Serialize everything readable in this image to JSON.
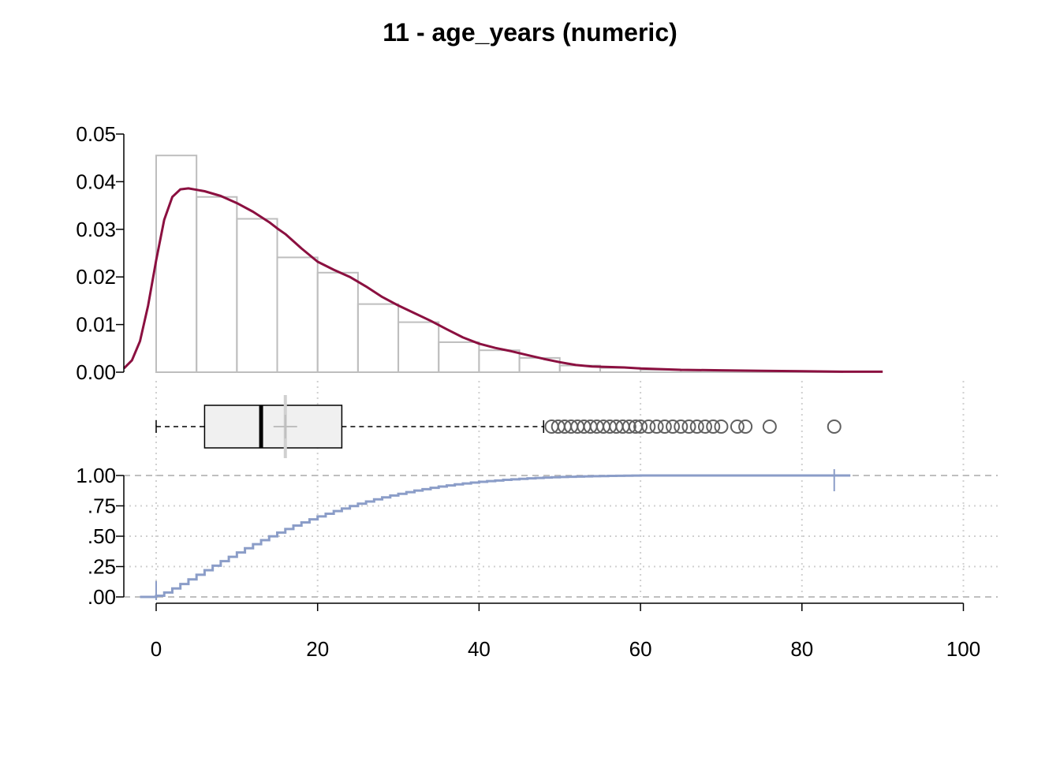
{
  "chart_data": {
    "type": "histogram-boxplot-ecdf",
    "title": "11 - age_years (numeric)",
    "xlabel": "",
    "xlim": [
      -5,
      105
    ],
    "x_ticks": [
      0,
      20,
      40,
      60,
      80,
      100
    ],
    "x_tick_labels": [
      "0",
      "20",
      "40",
      "60",
      "80",
      "100"
    ],
    "grid": true,
    "colors": {
      "histogram_border": "#BEBEBE",
      "density": "#8B1040",
      "box_fill": "#F0F0F0",
      "ecdf": "#8B9DC8",
      "mean_marker": "#BEBEBE",
      "grid": "#D0D0D0",
      "outlier": "#606060"
    },
    "histogram": {
      "ylim": [
        0,
        0.05
      ],
      "y_ticks": [
        0,
        0.01,
        0.02,
        0.03,
        0.04,
        0.05
      ],
      "y_tick_labels": [
        "0.00",
        "0.01",
        "0.02",
        "0.03",
        "0.04",
        "0.05"
      ],
      "bin_width": 5,
      "bins": [
        {
          "x0": 0,
          "x1": 5,
          "density": 0.0455
        },
        {
          "x0": 5,
          "x1": 10,
          "density": 0.0368
        },
        {
          "x0": 10,
          "x1": 15,
          "density": 0.0322
        },
        {
          "x0": 15,
          "x1": 20,
          "density": 0.0241
        },
        {
          "x0": 20,
          "x1": 25,
          "density": 0.0209
        },
        {
          "x0": 25,
          "x1": 30,
          "density": 0.0143
        },
        {
          "x0": 30,
          "x1": 35,
          "density": 0.0105
        },
        {
          "x0": 35,
          "x1": 40,
          "density": 0.0063
        },
        {
          "x0": 40,
          "x1": 45,
          "density": 0.0046
        },
        {
          "x0": 45,
          "x1": 50,
          "density": 0.003
        },
        {
          "x0": 50,
          "x1": 55,
          "density": 0.0014
        },
        {
          "x0": 55,
          "x1": 60,
          "density": 0.0009
        },
        {
          "x0": 60,
          "x1": 65,
          "density": 0.0005
        },
        {
          "x0": 65,
          "x1": 70,
          "density": 0.0004
        },
        {
          "x0": 70,
          "x1": 75,
          "density": 0.0002
        },
        {
          "x0": 75,
          "x1": 80,
          "density": 0.0001
        },
        {
          "x0": 80,
          "x1": 85,
          "density": 0.0001
        }
      ],
      "density_curve": {
        "x": [
          -4,
          -3,
          -2,
          -1,
          0,
          1,
          2,
          3,
          4,
          5,
          6,
          8,
          10,
          12,
          14,
          15,
          16,
          18,
          20,
          22,
          24,
          26,
          28,
          30,
          32,
          34,
          36,
          38,
          40,
          42,
          44,
          46,
          48,
          50,
          52,
          54,
          56,
          58,
          60,
          65,
          70,
          75,
          80,
          85,
          90
        ],
        "y": [
          0.0008,
          0.0025,
          0.0065,
          0.014,
          0.0235,
          0.032,
          0.0368,
          0.0384,
          0.0386,
          0.0383,
          0.038,
          0.037,
          0.0355,
          0.0337,
          0.0315,
          0.0302,
          0.029,
          0.026,
          0.0232,
          0.0215,
          0.02,
          0.018,
          0.0158,
          0.014,
          0.0124,
          0.0108,
          0.009,
          0.0073,
          0.006,
          0.0051,
          0.0044,
          0.0036,
          0.0028,
          0.0021,
          0.0015,
          0.0012,
          0.0011,
          0.001,
          0.0008,
          0.0005,
          0.0004,
          0.0003,
          0.0002,
          0.0001,
          0.0001
        ]
      }
    },
    "boxplot": {
      "whisker_low": 0,
      "q1": 6,
      "median": 13,
      "q3": 23,
      "whisker_high": 48,
      "mean": 16,
      "outliers": [
        49,
        49.8,
        50.6,
        51.4,
        52.2,
        53,
        53.8,
        54.6,
        55.4,
        56.2,
        57,
        57.8,
        58.6,
        59.4,
        60,
        61,
        62,
        63,
        64,
        65,
        66,
        67,
        68,
        69,
        70,
        72,
        73,
        76,
        84
      ]
    },
    "ecdf": {
      "ylim": [
        0,
        1
      ],
      "y_ticks": [
        0,
        0.25,
        0.5,
        0.75,
        1
      ],
      "y_tick_labels": [
        ".00",
        ".25",
        ".50",
        ".75",
        "1.00"
      ],
      "x_min": 0,
      "x_max": 84
    }
  }
}
